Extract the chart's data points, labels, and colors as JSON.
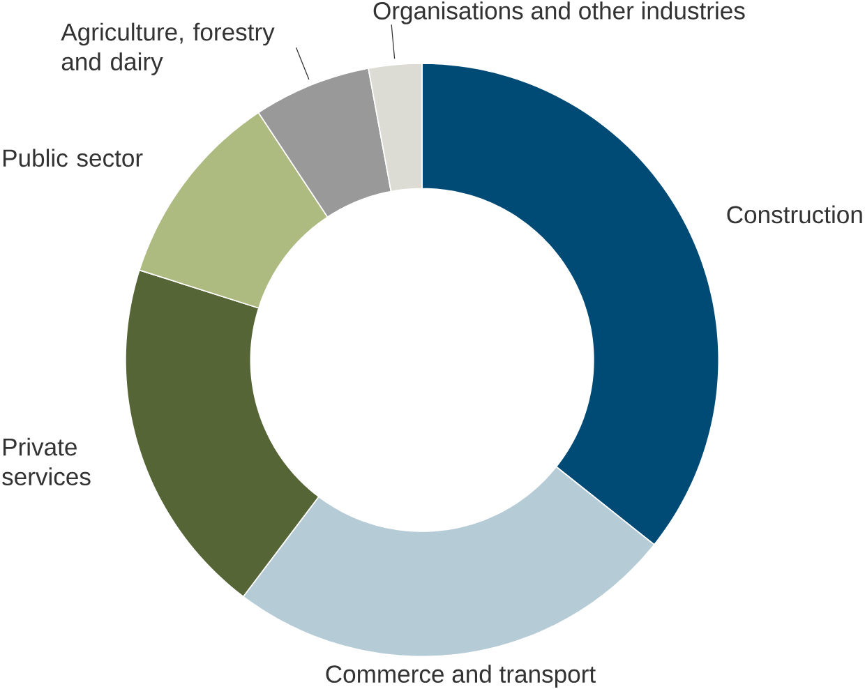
{
  "chart_data": {
    "type": "donut",
    "categories": [
      "Construction",
      "Commerce and transport",
      "Private services",
      "Public sector",
      "Agriculture, forestry and dairy",
      "Organisations and other industries"
    ],
    "values": [
      35.7,
      24.6,
      19.6,
      10.8,
      6.4,
      2.9
    ],
    "colors": [
      "#004b76",
      "#b5cbd6",
      "#566536",
      "#adba80",
      "#999999",
      "#dcdcd5"
    ]
  }
}
